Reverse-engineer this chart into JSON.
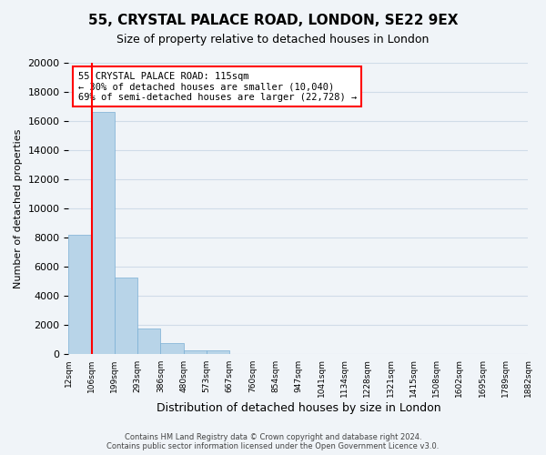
{
  "title": "55, CRYSTAL PALACE ROAD, LONDON, SE22 9EX",
  "subtitle": "Size of property relative to detached houses in London",
  "xlabel": "Distribution of detached houses by size in London",
  "ylabel": "Number of detached properties",
  "bin_labels": [
    "12sqm",
    "106sqm",
    "199sqm",
    "293sqm",
    "386sqm",
    "480sqm",
    "573sqm",
    "667sqm",
    "760sqm",
    "854sqm",
    "947sqm",
    "1041sqm",
    "1134sqm",
    "1228sqm",
    "1321sqm",
    "1415sqm",
    "1508sqm",
    "1602sqm",
    "1695sqm",
    "1789sqm",
    "1882sqm"
  ],
  "bar_heights": [
    8200,
    16600,
    5300,
    1800,
    800,
    300,
    300,
    0,
    0,
    0,
    0,
    0,
    0,
    0,
    0,
    0,
    0,
    0,
    0,
    0
  ],
  "bar_color": "#b8d4e8",
  "bar_edge_color": "#7aafd4",
  "grid_color": "#d0dce8",
  "property_line_x": 1.0,
  "property_line_color": "red",
  "annotation_title": "55 CRYSTAL PALACE ROAD: 115sqm",
  "annotation_line1": "← 30% of detached houses are smaller (10,040)",
  "annotation_line2": "69% of semi-detached houses are larger (22,728) →",
  "annotation_box_color": "white",
  "annotation_box_edge": "red",
  "ylim": [
    0,
    20000
  ],
  "yticks": [
    0,
    2000,
    4000,
    6000,
    8000,
    10000,
    12000,
    14000,
    16000,
    18000,
    20000
  ],
  "footer_line1": "Contains HM Land Registry data © Crown copyright and database right 2024.",
  "footer_line2": "Contains public sector information licensed under the Open Government Licence v3.0.",
  "bg_color": "#f0f4f8"
}
